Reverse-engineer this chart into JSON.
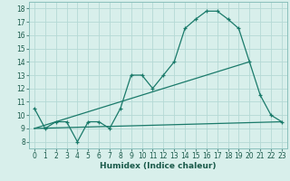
{
  "line1_x": [
    0,
    1,
    2,
    3,
    4,
    5,
    6,
    7,
    8,
    9,
    10,
    11,
    12,
    13,
    14,
    15,
    16,
    17,
    18,
    19,
    20,
    21,
    22,
    23
  ],
  "line1_y": [
    10.5,
    9.0,
    9.5,
    9.5,
    8.0,
    9.5,
    9.5,
    9.0,
    10.5,
    13.0,
    13.0,
    12.0,
    13.0,
    14.0,
    16.5,
    17.2,
    17.8,
    17.8,
    17.2,
    16.5,
    14.0,
    11.5,
    10.0,
    9.5
  ],
  "line2_x": [
    0,
    23
  ],
  "line2_y": [
    9.0,
    9.5
  ],
  "line3_x": [
    0,
    20
  ],
  "line3_y": [
    9.0,
    14.0
  ],
  "line_color": "#1a7a6a",
  "bg_color": "#d8efeb",
  "grid_color": "#b5d9d5",
  "xlabel": "Humidex (Indice chaleur)",
  "yticks": [
    8,
    9,
    10,
    11,
    12,
    13,
    14,
    15,
    16,
    17,
    18
  ],
  "xtick_labels": [
    "0",
    "1",
    "2",
    "3",
    "4",
    "5",
    "6",
    "7",
    "8",
    "9",
    "10",
    "11",
    "12",
    "13",
    "14",
    "15",
    "16",
    "17",
    "18",
    "19",
    "20",
    "21",
    "22",
    "23"
  ],
  "xticks": [
    0,
    1,
    2,
    3,
    4,
    5,
    6,
    7,
    8,
    9,
    10,
    11,
    12,
    13,
    14,
    15,
    16,
    17,
    18,
    19,
    20,
    21,
    22,
    23
  ],
  "ylim": [
    7.5,
    18.5
  ],
  "xlim": [
    -0.5,
    23.5
  ],
  "tick_fontsize": 5.5,
  "xlabel_fontsize": 6.5,
  "xlabel_color": "#1a5a4a"
}
